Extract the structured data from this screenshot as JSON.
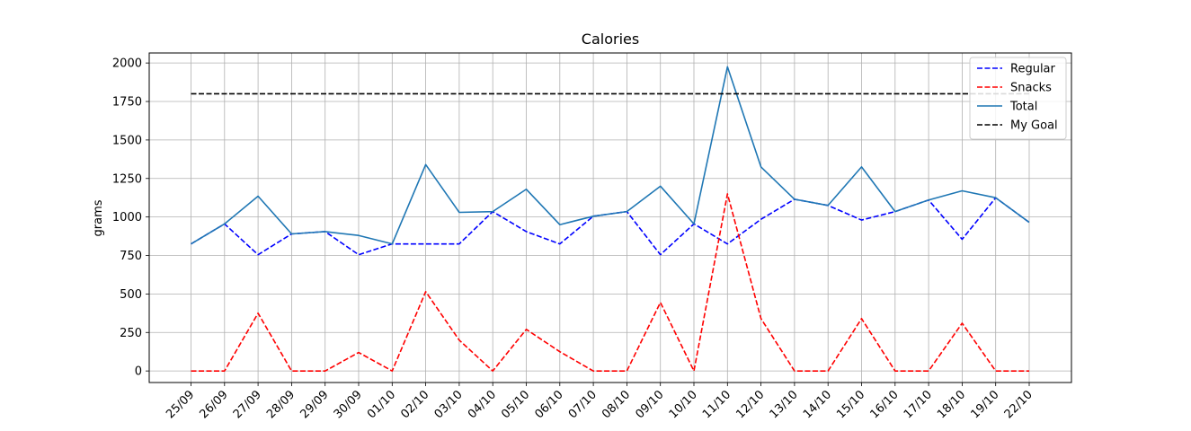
{
  "chart_data": {
    "type": "line",
    "title": "Calories",
    "xlabel": "",
    "ylabel": "grams",
    "ylim": [
      -75,
      2065
    ],
    "yticks": [
      0,
      250,
      500,
      750,
      1000,
      1250,
      1500,
      1750,
      2000
    ],
    "grid": true,
    "legend_position": "top-right",
    "categories": [
      "25/09",
      "26/09",
      "27/09",
      "28/09",
      "29/09",
      "30/09",
      "01/10",
      "02/10",
      "03/10",
      "04/10",
      "05/10",
      "06/10",
      "07/10",
      "08/10",
      "09/10",
      "10/10",
      "11/10",
      "12/10",
      "13/10",
      "14/10",
      "15/10",
      "16/10",
      "17/10",
      "18/10",
      "19/10",
      "22/10"
    ],
    "series": [
      {
        "name": "Regular",
        "color": "#0000ff",
        "style": "dashed",
        "values": [
          825,
          955,
          755,
          890,
          905,
          755,
          825,
          825,
          825,
          1035,
          905,
          825,
          1005,
          1035,
          755,
          955,
          825,
          985,
          1115,
          1075,
          980,
          1035,
          1110,
          855,
          1125,
          965
        ]
      },
      {
        "name": "Snacks",
        "color": "#ff0000",
        "style": "dashed",
        "values": [
          0,
          0,
          375,
          0,
          0,
          120,
          0,
          515,
          200,
          0,
          270,
          125,
          0,
          0,
          445,
          0,
          1150,
          340,
          0,
          0,
          340,
          0,
          0,
          310,
          0,
          0
        ]
      },
      {
        "name": "Total",
        "color": "#1f77b4",
        "style": "solid",
        "values": [
          825,
          955,
          1135,
          890,
          905,
          880,
          825,
          1340,
          1030,
          1035,
          1180,
          950,
          1005,
          1035,
          1200,
          955,
          1975,
          1325,
          1115,
          1075,
          1325,
          1035,
          1110,
          1170,
          1125,
          965
        ]
      },
      {
        "name": "My Goal",
        "color": "#000000",
        "style": "dashed",
        "values": [
          1800,
          1800,
          1800,
          1800,
          1800,
          1800,
          1800,
          1800,
          1800,
          1800,
          1800,
          1800,
          1800,
          1800,
          1800,
          1800,
          1800,
          1800,
          1800,
          1800,
          1800,
          1800,
          1800,
          1800,
          1800,
          1800
        ]
      }
    ]
  }
}
